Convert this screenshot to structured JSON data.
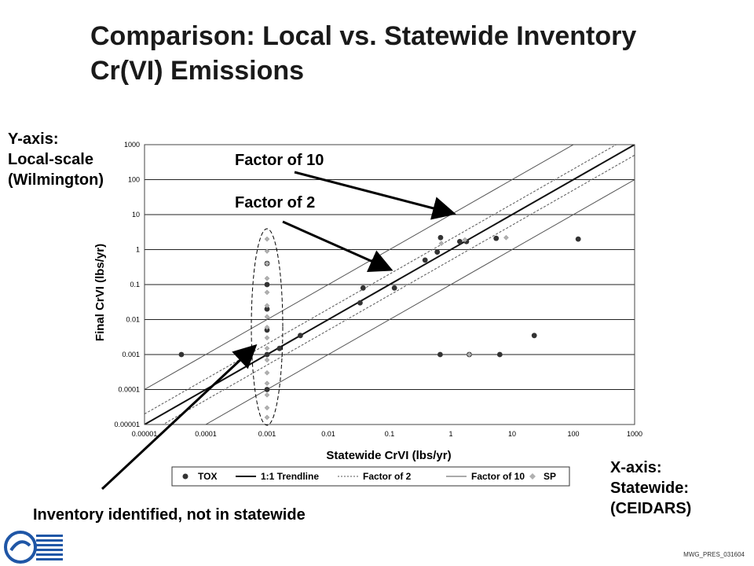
{
  "slide": {
    "title_line1": "Comparison: Local vs. Statewide Inventory",
    "title_line2": "Cr(VI) Emissions",
    "y_note": [
      "Y-axis:",
      "Local-scale",
      "(Wilmington)"
    ],
    "x_note": [
      "X-axis:",
      "Statewide:",
      "(CEIDARS)"
    ],
    "callout_factor10": "Factor of 10",
    "callout_factor2": "Factor of 2",
    "callout_inventory": "Inventory identified, not in statewide",
    "footer_code": "MWG_PRES_031604"
  },
  "colors": {
    "tox": "#333333",
    "sp": "#b0b0b0",
    "trendline": "#111111",
    "guide": "#555555",
    "grid": "#222222"
  },
  "chart_data": {
    "type": "scatter",
    "xlabel": "Statewide CrVI (lbs/yr)",
    "ylabel": "Final CrVI (lbs/yr)",
    "x_scale": "log",
    "y_scale": "log",
    "xlim": [
      1e-05,
      1000
    ],
    "ylim": [
      1e-05,
      1000
    ],
    "x_ticks": [
      "0.00001",
      "0.0001",
      "0.001",
      "0.01",
      "0.1",
      "1",
      "10",
      "100",
      "1000"
    ],
    "y_ticks": [
      "0.00001",
      "0.0001",
      "0.001",
      "0.01",
      "0.1",
      "1",
      "10",
      "100",
      "1000"
    ],
    "grid": "horizontal",
    "legend_position": "bottom",
    "legend": [
      {
        "label": "TOX",
        "kind": "dot"
      },
      {
        "label": "1:1 Trendline",
        "kind": "solid"
      },
      {
        "label": "Factor of 2",
        "kind": "dashed"
      },
      {
        "label": "Factor of 10",
        "kind": "thin"
      },
      {
        "label": "SP",
        "kind": "diamond"
      }
    ],
    "series": [
      {
        "name": "TOX",
        "points": [
          [
            4e-05,
            0.001
          ],
          [
            0.0016,
            0.0015
          ],
          [
            0.0035,
            0.0035
          ],
          [
            0.033,
            0.03
          ],
          [
            0.037,
            0.08
          ],
          [
            0.12,
            0.08
          ],
          [
            0.38,
            0.5
          ],
          [
            0.6,
            0.85
          ],
          [
            0.68,
            2.2
          ],
          [
            0.67,
            0.001
          ],
          [
            1.4,
            1.7
          ],
          [
            1.8,
            1.7
          ],
          [
            2.0,
            0.001
          ],
          [
            5.5,
            2.1
          ],
          [
            6.3,
            0.001
          ],
          [
            23,
            0.0035
          ],
          [
            120,
            2.0
          ],
          [
            0.001,
            0.0001
          ],
          [
            0.001,
            0.001
          ],
          [
            0.001,
            0.005
          ],
          [
            0.001,
            0.02
          ],
          [
            0.001,
            0.1
          ],
          [
            0.001,
            0.4
          ]
        ]
      },
      {
        "name": "SP",
        "points": [
          [
            0.001,
            2.0
          ],
          [
            0.001,
            0.9
          ],
          [
            0.001,
            0.4
          ],
          [
            0.001,
            0.15
          ],
          [
            0.001,
            0.06
          ],
          [
            0.001,
            0.025
          ],
          [
            0.001,
            0.012
          ],
          [
            0.001,
            0.006
          ],
          [
            0.001,
            0.003
          ],
          [
            0.001,
            0.0015
          ],
          [
            0.001,
            0.0007
          ],
          [
            0.001,
            0.0003
          ],
          [
            0.001,
            0.00015
          ],
          [
            0.001,
            7e-05
          ],
          [
            0.001,
            3e-05
          ],
          [
            0.001,
            1.6e-05
          ],
          [
            0.7,
            1.5
          ],
          [
            2.0,
            0.001
          ],
          [
            8.0,
            2.2
          ],
          [
            1.7,
            1.9
          ]
        ]
      }
    ],
    "reference_lines": [
      {
        "name": "1:1 Trendline",
        "factor": 1
      },
      {
        "name": "Factor of 2",
        "factor": 2
      },
      {
        "name": "Factor of 2",
        "factor": 0.5
      },
      {
        "name": "Factor of 10",
        "factor": 10
      },
      {
        "name": "Factor of 10",
        "factor": 0.1
      }
    ]
  }
}
